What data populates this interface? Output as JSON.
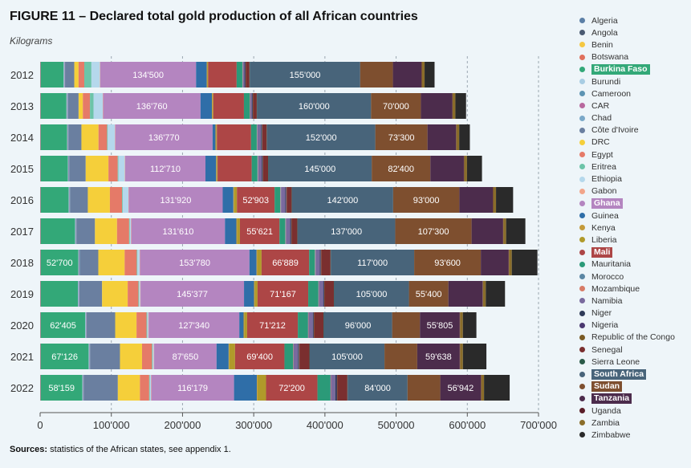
{
  "chart_data": {
    "type": "bar",
    "orientation": "horizontal",
    "stacked": true,
    "title": "FIGURE 11 – Declared total gold production of all African countries",
    "subtitle": "Kilograms",
    "source_label": "Sources:",
    "source_text": " statistics of the African states, see appendix 1.",
    "categories": [
      "2012",
      "2013",
      "2014",
      "2015",
      "2016",
      "2017",
      "2018",
      "2019",
      "2020",
      "2021",
      "2022"
    ],
    "xlim": [
      0,
      700000
    ],
    "xticks": [
      0,
      100000,
      200000,
      300000,
      400000,
      500000,
      600000,
      700000
    ],
    "xtick_labels": [
      "0",
      "100'000",
      "200'000",
      "300'000",
      "400'000",
      "500'000",
      "600'000",
      "700'000"
    ],
    "grid": "vertical dashed",
    "legend_position": "right",
    "series": [
      {
        "name": "Algeria",
        "color": "#5b7fa6",
        "values": [
          500,
          500,
          500,
          500,
          500,
          500,
          500,
          500,
          500,
          500,
          500
        ]
      },
      {
        "name": "Angola",
        "color": "#4a5a72",
        "values": [
          0,
          0,
          0,
          0,
          0,
          0,
          0,
          0,
          0,
          0,
          0
        ]
      },
      {
        "name": "Benin",
        "color": "#f5c842",
        "values": [
          0,
          0,
          0,
          0,
          0,
          0,
          0,
          0,
          0,
          0,
          0
        ]
      },
      {
        "name": "Botswana",
        "color": "#e0705c",
        "values": [
          500,
          500,
          500,
          500,
          500,
          500,
          500,
          500,
          500,
          500,
          500
        ]
      },
      {
        "name": "Burkina Faso",
        "color": "#33a878",
        "highlight": true,
        "values": [
          32000,
          36000,
          37000,
          38000,
          39000,
          48000,
          52700,
          52000,
          62405,
          67126,
          58159
        ]
      },
      {
        "name": "Burundi",
        "color": "#a8cde3",
        "values": [
          500,
          500,
          500,
          500,
          500,
          500,
          500,
          500,
          500,
          500,
          500
        ]
      },
      {
        "name": "Cameroon",
        "color": "#5d94b3",
        "values": [
          500,
          500,
          500,
          500,
          500,
          500,
          500,
          500,
          500,
          500,
          500
        ]
      },
      {
        "name": "CAR",
        "color": "#b8689e",
        "values": [
          500,
          500,
          500,
          500,
          500,
          500,
          500,
          500,
          500,
          500,
          500
        ]
      },
      {
        "name": "Chad",
        "color": "#7aa8c8",
        "values": [
          500,
          500,
          500,
          500,
          500,
          500,
          500,
          500,
          500,
          500,
          500
        ]
      },
      {
        "name": "Côte d'Ivoire",
        "color": "#6a7fa0",
        "values": [
          13000,
          15000,
          18000,
          23000,
          25000,
          26000,
          26000,
          32000,
          40000,
          42000,
          48000
        ]
      },
      {
        "name": "DRC",
        "color": "#f5cf3a",
        "values": [
          6000,
          6000,
          24000,
          32000,
          31000,
          31000,
          37000,
          36000,
          30000,
          31000,
          31000
        ]
      },
      {
        "name": "Egypt",
        "color": "#e57a68",
        "values": [
          8000,
          10000,
          12000,
          13000,
          17000,
          17000,
          17000,
          15000,
          14000,
          14000,
          13000
        ]
      },
      {
        "name": "Eritrea",
        "color": "#6cc4a8",
        "values": [
          10000,
          5000,
          1000,
          1000,
          1000,
          1000,
          1000,
          1000,
          1000,
          1000,
          1000
        ]
      },
      {
        "name": "Ethiopia",
        "color": "#b5d8ec",
        "values": [
          12000,
          13000,
          10000,
          9000,
          8000,
          1500,
          3000,
          1500,
          1500,
          1500,
          1500
        ]
      },
      {
        "name": "Gabon",
        "color": "#f2a58a",
        "values": [
          500,
          500,
          500,
          500,
          500,
          500,
          500,
          500,
          500,
          500,
          500
        ]
      },
      {
        "name": "Ghana",
        "color": "#b485c0",
        "highlight": true,
        "values": [
          134500,
          136760,
          136770,
          112710,
          131920,
          131610,
          153780,
          145377,
          127340,
          87650,
          116179
        ]
      },
      {
        "name": "Guinea",
        "color": "#2f6ea8",
        "values": [
          15000,
          16000,
          4000,
          15000,
          15000,
          16000,
          10000,
          14000,
          6000,
          17000,
          32000
        ]
      },
      {
        "name": "Kenya",
        "color": "#c49a3a",
        "values": [
          1000,
          1000,
          1000,
          1000,
          1000,
          1000,
          1000,
          1000,
          1000,
          1000,
          1000
        ]
      },
      {
        "name": "Liberia",
        "color": "#b09a2a",
        "values": [
          1000,
          1000,
          1000,
          1000,
          4000,
          4000,
          6000,
          4000,
          4000,
          8000,
          12000
        ]
      },
      {
        "name": "Mali",
        "color": "#ad4646",
        "highlight": true,
        "values": [
          40000,
          43000,
          48000,
          48000,
          52903,
          55621,
          66889,
          71167,
          71212,
          69400,
          72200
        ]
      },
      {
        "name": "Mauritania",
        "color": "#2b9a78",
        "values": [
          8000,
          8000,
          8000,
          8000,
          8000,
          8000,
          8000,
          14000,
          14000,
          12000,
          18000
        ]
      },
      {
        "name": "Morocco",
        "color": "#5b86a3",
        "values": [
          500,
          500,
          500,
          500,
          500,
          500,
          500,
          500,
          500,
          500,
          500
        ]
      },
      {
        "name": "Mozambique",
        "color": "#d77b66",
        "values": [
          500,
          500,
          500,
          500,
          500,
          500,
          500,
          500,
          500,
          500,
          500
        ]
      },
      {
        "name": "Namibia",
        "color": "#7a6a9e",
        "values": [
          2000,
          2000,
          5000,
          5000,
          6000,
          6000,
          6000,
          6000,
          6000,
          6000,
          6000
        ]
      },
      {
        "name": "Niger",
        "color": "#2e3a58",
        "values": [
          1000,
          1000,
          1000,
          1000,
          1000,
          1000,
          1000,
          1000,
          1000,
          1000,
          2000
        ]
      },
      {
        "name": "Nigeria",
        "color": "#4a3870",
        "values": [
          500,
          500,
          500,
          500,
          500,
          500,
          500,
          500,
          500,
          500,
          500
        ]
      },
      {
        "name": "Republic of the Congo",
        "color": "#7a5a24",
        "values": [
          500,
          500,
          500,
          500,
          500,
          500,
          500,
          500,
          500,
          500,
          500
        ]
      },
      {
        "name": "Senegal",
        "color": "#7a2f2f",
        "values": [
          5000,
          5000,
          6000,
          7000,
          7000,
          8000,
          13000,
          13000,
          13000,
          14000,
          14000
        ]
      },
      {
        "name": "Sierra Leone",
        "color": "#2a5a48",
        "values": [
          500,
          500,
          500,
          500,
          500,
          500,
          500,
          500,
          500,
          500,
          500
        ]
      },
      {
        "name": "South Africa",
        "color": "#48647a",
        "highlight": true,
        "values": [
          155000,
          160000,
          152000,
          145000,
          142000,
          137000,
          117000,
          105000,
          96000,
          105000,
          84000
        ]
      },
      {
        "name": "Sudan",
        "color": "#7e4f2f",
        "highlight": true,
        "values": [
          46000,
          70000,
          73300,
          82400,
          93000,
          107300,
          93600,
          55400,
          39000,
          46000,
          46000
        ]
      },
      {
        "name": "Tanzania",
        "color": "#4c2c4c",
        "highlight": true,
        "values": [
          40000,
          44000,
          40000,
          47000,
          47000,
          44000,
          39000,
          48000,
          55805,
          59638,
          56942
        ]
      },
      {
        "name": "Uganda",
        "color": "#5a1e28",
        "values": [
          500,
          500,
          500,
          500,
          500,
          500,
          500,
          500,
          500,
          500,
          500
        ]
      },
      {
        "name": "Zambia",
        "color": "#8a6d2a",
        "values": [
          4000,
          4000,
          4000,
          4000,
          4000,
          4000,
          4000,
          4000,
          4000,
          4000,
          4000
        ]
      },
      {
        "name": "Zimbabwe",
        "color": "#2a2a2a",
        "values": [
          14000,
          15000,
          15000,
          21000,
          24000,
          27000,
          36000,
          27000,
          19000,
          33000,
          36000
        ]
      }
    ],
    "data_labels": [
      {
        "series": "Ghana",
        "category": "2012",
        "text": "134'500"
      },
      {
        "series": "South Africa",
        "category": "2012",
        "text": "155'000"
      },
      {
        "series": "Ghana",
        "category": "2013",
        "text": "136'760"
      },
      {
        "series": "South Africa",
        "category": "2013",
        "text": "160'000"
      },
      {
        "series": "Sudan",
        "category": "2013",
        "text": "70'000"
      },
      {
        "series": "Ghana",
        "category": "2014",
        "text": "136'770"
      },
      {
        "series": "South Africa",
        "category": "2014",
        "text": "152'000"
      },
      {
        "series": "Sudan",
        "category": "2014",
        "text": "73'300"
      },
      {
        "series": "Ghana",
        "category": "2015",
        "text": "112'710"
      },
      {
        "series": "South Africa",
        "category": "2015",
        "text": "145'000"
      },
      {
        "series": "Sudan",
        "category": "2015",
        "text": "82'400"
      },
      {
        "series": "Ghana",
        "category": "2016",
        "text": "131'920"
      },
      {
        "series": "Mali",
        "category": "2016",
        "text": "52'903"
      },
      {
        "series": "South Africa",
        "category": "2016",
        "text": "142'000"
      },
      {
        "series": "Sudan",
        "category": "2016",
        "text": "93'000"
      },
      {
        "series": "Ghana",
        "category": "2017",
        "text": "131'610"
      },
      {
        "series": "Mali",
        "category": "2017",
        "text": "55'621"
      },
      {
        "series": "South Africa",
        "category": "2017",
        "text": "137'000"
      },
      {
        "series": "Sudan",
        "category": "2017",
        "text": "107'300"
      },
      {
        "series": "Burkina Faso",
        "category": "2018",
        "text": "52'700"
      },
      {
        "series": "Ghana",
        "category": "2018",
        "text": "153'780"
      },
      {
        "series": "Mali",
        "category": "2018",
        "text": "66'889"
      },
      {
        "series": "South Africa",
        "category": "2018",
        "text": "117'000"
      },
      {
        "series": "Sudan",
        "category": "2018",
        "text": "93'600"
      },
      {
        "series": "Ghana",
        "category": "2019",
        "text": "145'377"
      },
      {
        "series": "Mali",
        "category": "2019",
        "text": "71'167"
      },
      {
        "series": "South Africa",
        "category": "2019",
        "text": "105'000"
      },
      {
        "series": "Sudan",
        "category": "2019",
        "text": "55'400"
      },
      {
        "series": "Burkina Faso",
        "category": "2020",
        "text": "62'405"
      },
      {
        "series": "Ghana",
        "category": "2020",
        "text": "127'340"
      },
      {
        "series": "Mali",
        "category": "2020",
        "text": "71'212"
      },
      {
        "series": "South Africa",
        "category": "2020",
        "text": "96'000"
      },
      {
        "series": "Tanzania",
        "category": "2020",
        "text": "55'805"
      },
      {
        "series": "Burkina Faso",
        "category": "2021",
        "text": "67'126"
      },
      {
        "series": "Ghana",
        "category": "2021",
        "text": "87'650"
      },
      {
        "series": "Mali",
        "category": "2021",
        "text": "69'400"
      },
      {
        "series": "South Africa",
        "category": "2021",
        "text": "105'000"
      },
      {
        "series": "Tanzania",
        "category": "2021",
        "text": "59'638"
      },
      {
        "series": "Burkina Faso",
        "category": "2022",
        "text": "58'159"
      },
      {
        "series": "Ghana",
        "category": "2022",
        "text": "116'179"
      },
      {
        "series": "Mali",
        "category": "2022",
        "text": "72'200"
      },
      {
        "series": "South Africa",
        "category": "2022",
        "text": "84'000"
      },
      {
        "series": "Tanzania",
        "category": "2022",
        "text": "56'942"
      }
    ]
  }
}
